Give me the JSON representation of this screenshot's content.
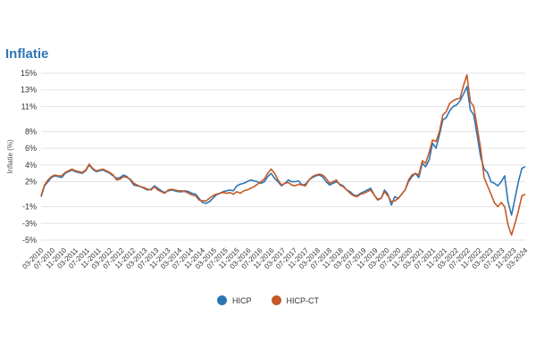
{
  "chart_data": {
    "type": "line",
    "title": "Inflatie",
    "ylabel": "Inflatie (%)",
    "xlabel": "",
    "ylim": [
      -5,
      15
    ],
    "yticks": [
      "15%",
      "13%",
      "11%",
      "8%",
      "6%",
      "4%",
      "2%",
      "-1%",
      "-3%",
      "-5%"
    ],
    "ytick_values": [
      15,
      13,
      11,
      8,
      6,
      4,
      2,
      -1,
      -3,
      -5
    ],
    "xtick_labels": [
      "03-2010",
      "07-2010",
      "11-2010",
      "03-2011",
      "07-2011",
      "11-2011",
      "03-2012",
      "07-2012",
      "11-2012",
      "03-2013",
      "07-2013",
      "11-2013",
      "03-2014",
      "07-2014",
      "11-2014",
      "03-2015",
      "07-2015",
      "11-2015",
      "03-2016",
      "07-2016",
      "11-2016",
      "03-2017",
      "07-2017",
      "11-2017",
      "03-2018",
      "07-2018",
      "11-2018",
      "03-2019",
      "07-2019",
      "11-2019",
      "03-2020",
      "07-2020",
      "11-2020",
      "03-2021",
      "07-2021",
      "11-2021",
      "03-2022",
      "07-2022",
      "11-2022",
      "03-2023",
      "07-2023",
      "11-2023",
      "03-2024"
    ],
    "grid": true,
    "legend_position": "bottom",
    "colors": {
      "HICP": "#2e75b6",
      "HICP-CT": "#c55a28",
      "title": "#2e75b6"
    },
    "series": [
      {
        "name": "HICP",
        "values": [
          0.2,
          1.5,
          2.0,
          2.5,
          2.7,
          2.6,
          2.5,
          3.0,
          3.2,
          3.4,
          3.2,
          3.1,
          3.0,
          3.3,
          4.0,
          3.5,
          3.2,
          3.3,
          3.4,
          3.2,
          3.0,
          2.7,
          2.4,
          2.5,
          2.8,
          2.6,
          2.2,
          1.6,
          1.5,
          1.4,
          1.2,
          1.0,
          1.1,
          1.5,
          1.2,
          0.9,
          0.7,
          0.9,
          1.0,
          0.9,
          0.8,
          0.8,
          0.9,
          0.8,
          0.6,
          0.5,
          0.0,
          -0.5,
          -0.6,
          -0.4,
          0.0,
          0.4,
          0.6,
          0.8,
          0.9,
          1.0,
          0.9,
          1.5,
          1.7,
          1.8,
          2.0,
          2.2,
          2.1,
          2.0,
          1.8,
          2.0,
          2.6,
          3.0,
          2.4,
          2.0,
          1.5,
          1.8,
          2.2,
          2.0,
          2.0,
          2.1,
          1.6,
          1.7,
          2.2,
          2.5,
          2.7,
          2.8,
          2.6,
          2.0,
          1.6,
          1.8,
          2.0,
          1.7,
          1.5,
          1.0,
          0.8,
          0.4,
          0.3,
          0.6,
          0.8,
          1.0,
          1.2,
          0.4,
          -0.1,
          0.0,
          1.0,
          0.5,
          -0.8,
          0.2,
          0.0,
          0.5,
          1.0,
          2.0,
          2.6,
          3.0,
          2.5,
          4.2,
          3.8,
          4.6,
          6.6,
          6.0,
          7.6,
          9.4,
          9.7,
          10.5,
          11.0,
          11.2,
          11.7,
          12.5,
          13.4,
          10.6,
          10.0,
          7.5,
          5.0,
          3.5,
          3.1,
          2.0,
          1.8,
          1.5,
          2.0,
          2.7,
          -0.5,
          -2.0,
          0.0,
          2.0,
          3.6,
          3.8
        ]
      },
      {
        "name": "HICP-CT",
        "values": [
          0.3,
          1.6,
          2.2,
          2.6,
          2.8,
          2.7,
          2.7,
          3.1,
          3.3,
          3.5,
          3.3,
          3.2,
          3.1,
          3.4,
          4.1,
          3.6,
          3.3,
          3.4,
          3.5,
          3.3,
          3.1,
          2.8,
          2.2,
          2.3,
          2.6,
          2.5,
          2.3,
          1.8,
          1.6,
          1.4,
          1.3,
          1.1,
          1.0,
          1.4,
          1.0,
          0.8,
          0.6,
          1.0,
          1.1,
          1.0,
          0.9,
          0.9,
          0.8,
          0.6,
          0.4,
          0.3,
          -0.2,
          -0.3,
          -0.3,
          0.0,
          0.3,
          0.5,
          0.6,
          0.7,
          0.6,
          0.7,
          0.5,
          0.8,
          0.6,
          0.9,
          1.0,
          1.2,
          1.4,
          1.7,
          2.0,
          2.3,
          3.0,
          3.5,
          3.0,
          2.2,
          1.6,
          1.8,
          1.9,
          1.6,
          1.5,
          1.7,
          1.6,
          1.5,
          2.2,
          2.6,
          2.8,
          2.9,
          2.8,
          2.4,
          1.8,
          2.0,
          2.2,
          1.6,
          1.4,
          1.0,
          0.6,
          0.3,
          0.2,
          0.5,
          0.6,
          0.8,
          1.0,
          0.4,
          -0.2,
          0.0,
          0.8,
          0.3,
          -0.4,
          -0.3,
          0.0,
          0.5,
          1.0,
          2.2,
          2.8,
          3.0,
          2.8,
          4.5,
          4.2,
          5.5,
          7.0,
          6.8,
          8.0,
          10.0,
          10.4,
          11.4,
          11.7,
          11.9,
          12.0,
          13.5,
          14.8,
          11.6,
          11.0,
          8.5,
          6.0,
          2.5,
          1.5,
          0.5,
          -0.5,
          -1.0,
          -0.5,
          -1.0,
          -3.2,
          -4.4,
          -3.0,
          -1.5,
          0.3,
          0.5
        ]
      }
    ]
  }
}
